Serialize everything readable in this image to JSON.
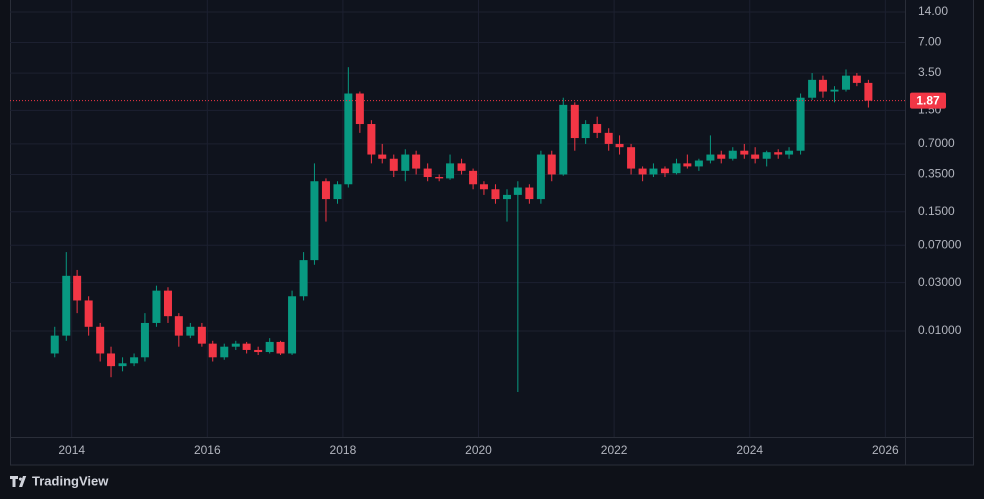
{
  "chart_data": {
    "type": "candlestick",
    "log_scale": true,
    "grid": true,
    "up_color": "#089981",
    "down_color": "#f23645",
    "x": [
      2013.75,
      2013.92,
      2014.08,
      2014.25,
      2014.42,
      2014.58,
      2014.75,
      2014.92,
      2015.08,
      2015.25,
      2015.42,
      2015.58,
      2015.75,
      2015.92,
      2016.08,
      2016.25,
      2016.42,
      2016.58,
      2016.75,
      2016.92,
      2017.08,
      2017.25,
      2017.42,
      2017.58,
      2017.75,
      2017.92,
      2018.08,
      2018.25,
      2018.42,
      2018.58,
      2018.75,
      2018.92,
      2019.08,
      2019.25,
      2019.42,
      2019.58,
      2019.75,
      2019.92,
      2020.08,
      2020.25,
      2020.42,
      2020.58,
      2020.75,
      2020.92,
      2021.08,
      2021.25,
      2021.42,
      2021.58,
      2021.75,
      2021.92,
      2022.08,
      2022.25,
      2022.42,
      2022.58,
      2022.75,
      2022.92,
      2023.08,
      2023.25,
      2023.42,
      2023.58,
      2023.75,
      2023.92,
      2024.08,
      2024.25,
      2024.42,
      2024.58,
      2024.75,
      2024.92,
      2025.08,
      2025.25,
      2025.42,
      2025.58,
      2025.75
    ],
    "open": [
      0.006,
      0.009,
      0.035,
      0.02,
      0.011,
      0.006,
      0.0045,
      0.0048,
      0.0055,
      0.012,
      0.025,
      0.014,
      0.009,
      0.011,
      0.0075,
      0.0055,
      0.007,
      0.0075,
      0.0065,
      0.0062,
      0.0078,
      0.006,
      0.022,
      0.05,
      0.3,
      0.2,
      0.28,
      2.2,
      1.1,
      0.55,
      0.5,
      0.38,
      0.55,
      0.4,
      0.33,
      0.32,
      0.45,
      0.38,
      0.28,
      0.25,
      0.2,
      0.22,
      0.26,
      0.2,
      0.55,
      0.35,
      1.7,
      0.8,
      1.1,
      0.9,
      0.7,
      0.65,
      0.4,
      0.35,
      0.4,
      0.36,
      0.45,
      0.42,
      0.48,
      0.55,
      0.5,
      0.6,
      0.55,
      0.5,
      0.58,
      0.55,
      0.6,
      2.0,
      3.0,
      2.3,
      2.4,
      3.3,
      2.8
    ],
    "high": [
      0.011,
      0.06,
      0.04,
      0.022,
      0.012,
      0.007,
      0.0055,
      0.006,
      0.015,
      0.028,
      0.027,
      0.015,
      0.012,
      0.012,
      0.008,
      0.0075,
      0.008,
      0.0078,
      0.007,
      0.0085,
      0.008,
      0.025,
      0.06,
      0.45,
      0.32,
      0.3,
      4.0,
      2.3,
      1.2,
      0.7,
      0.55,
      0.62,
      0.6,
      0.45,
      0.35,
      0.55,
      0.5,
      0.4,
      0.3,
      0.28,
      0.25,
      0.3,
      0.28,
      0.6,
      0.6,
      2.0,
      1.8,
      1.2,
      1.3,
      1.0,
      0.85,
      0.7,
      0.42,
      0.45,
      0.42,
      0.5,
      0.55,
      0.5,
      0.85,
      0.6,
      0.65,
      0.7,
      0.65,
      0.6,
      0.62,
      0.65,
      2.2,
      3.5,
      3.3,
      2.6,
      3.8,
      3.5,
      3.0
    ],
    "low": [
      0.0055,
      0.008,
      0.015,
      0.009,
      0.005,
      0.0035,
      0.004,
      0.0045,
      0.005,
      0.011,
      0.012,
      0.007,
      0.0085,
      0.007,
      0.005,
      0.0052,
      0.0065,
      0.006,
      0.0058,
      0.006,
      0.0058,
      0.0058,
      0.02,
      0.045,
      0.12,
      0.18,
      0.26,
      0.9,
      0.45,
      0.45,
      0.33,
      0.3,
      0.35,
      0.3,
      0.3,
      0.31,
      0.35,
      0.25,
      0.22,
      0.18,
      0.12,
      0.0025,
      0.18,
      0.18,
      0.3,
      0.34,
      0.6,
      0.7,
      0.8,
      0.6,
      0.55,
      0.35,
      0.3,
      0.33,
      0.33,
      0.35,
      0.4,
      0.38,
      0.45,
      0.45,
      0.48,
      0.5,
      0.45,
      0.42,
      0.5,
      0.5,
      0.55,
      1.9,
      2.0,
      1.8,
      2.3,
      2.6,
      1.6
    ],
    "close": [
      0.009,
      0.035,
      0.02,
      0.011,
      0.006,
      0.0045,
      0.0048,
      0.0055,
      0.012,
      0.025,
      0.014,
      0.009,
      0.011,
      0.0075,
      0.0055,
      0.007,
      0.0075,
      0.0065,
      0.0062,
      0.0078,
      0.006,
      0.022,
      0.05,
      0.3,
      0.2,
      0.28,
      2.2,
      1.1,
      0.55,
      0.5,
      0.38,
      0.55,
      0.4,
      0.33,
      0.32,
      0.45,
      0.38,
      0.28,
      0.25,
      0.2,
      0.22,
      0.26,
      0.2,
      0.55,
      0.35,
      1.7,
      0.8,
      1.1,
      0.9,
      0.7,
      0.65,
      0.4,
      0.35,
      0.4,
      0.36,
      0.45,
      0.42,
      0.48,
      0.55,
      0.5,
      0.6,
      0.55,
      0.5,
      0.58,
      0.55,
      0.6,
      2.0,
      3.0,
      2.3,
      2.4,
      3.3,
      2.8,
      1.87
    ],
    "last_price": 1.87,
    "last_price_color": "#f23645",
    "xlim": [
      2013.09,
      2026.29
    ],
    "xticks": [
      2014,
      2016,
      2018,
      2020,
      2022,
      2024,
      2026
    ],
    "ylim": [
      0.0009,
      18.4
    ],
    "yticks": [
      {
        "value": 14,
        "label": "14.00"
      },
      {
        "value": 7,
        "label": "7.00"
      },
      {
        "value": 3.5,
        "label": "3.50"
      },
      {
        "value": 1.5,
        "label": "1.50"
      },
      {
        "value": 0.7,
        "label": "0.7000"
      },
      {
        "value": 0.35,
        "label": "0.3500"
      },
      {
        "value": 0.15,
        "label": "0.1500"
      },
      {
        "value": 0.07,
        "label": "0.07000"
      },
      {
        "value": 0.03,
        "label": "0.03000"
      },
      {
        "value": 0.01,
        "label": "0.01000"
      }
    ],
    "brand": "TradingView"
  }
}
